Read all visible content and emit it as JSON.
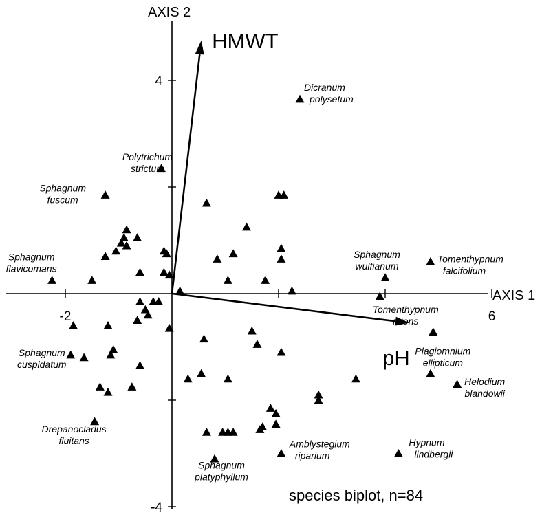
{
  "chart_data": {
    "type": "scatter",
    "title": "",
    "caption": "species biplot, n=84",
    "xlabel": "AXIS 1",
    "ylabel": "AXIS 2",
    "xlim": [
      -3.2,
      7.0
    ],
    "ylim": [
      -4.1,
      5.1
    ],
    "x_ticks": [
      -2,
      0,
      2,
      4,
      6
    ],
    "y_ticks": [
      -4,
      -2,
      0,
      2,
      4
    ],
    "x_tick_labels": [
      {
        "value": -2,
        "label": "-2"
      },
      {
        "value": 6,
        "label": "6"
      }
    ],
    "y_tick_labels": [
      {
        "value": 4,
        "label": "4"
      },
      {
        "value": -4,
        "label": "-4"
      }
    ],
    "vectors": [
      {
        "label": "HMWT",
        "x": 0.55,
        "y": 4.75,
        "label_at": [
          0.75,
          4.75
        ]
      },
      {
        "label": "pH",
        "x": 4.45,
        "y": -0.55,
        "label_at": [
          3.95,
          -1.2
        ]
      }
    ],
    "labeled_species": [
      {
        "name": [
          "Dicranum",
          "polysetum"
        ],
        "x": 2.4,
        "y": 3.65
      },
      {
        "name": [
          "Polytrichum",
          "strictum"
        ],
        "x": -0.2,
        "y": 2.35
      },
      {
        "name": [
          "Sphagnum",
          "fuscum"
        ],
        "x": -1.25,
        "y": 1.85
      },
      {
        "name": [
          "Sphagnum",
          "flavicomans"
        ],
        "x": -2.25,
        "y": 0.25
      },
      {
        "name": [
          "Sphagnum",
          "wulfianum"
        ],
        "x": 4.0,
        "y": 0.3
      },
      {
        "name": [
          "Tomenthypnum",
          "falcifolium"
        ],
        "x": 4.85,
        "y": 0.6
      },
      {
        "name": [
          "Tomenthypnum",
          "nitens"
        ],
        "x": 4.9,
        "y": -0.72
      },
      {
        "name": [
          "Sphagnum",
          "cuspidatum"
        ],
        "x": -1.9,
        "y": -1.15
      },
      {
        "name": [
          "Plagiomnium",
          "ellipticum"
        ],
        "x": 4.85,
        "y": -1.5
      },
      {
        "name": [
          "Helodium",
          "blandowii"
        ],
        "x": 5.35,
        "y": -1.7
      },
      {
        "name": [
          "Drepanocladus",
          "fluitans"
        ],
        "x": -1.45,
        "y": -2.4
      },
      {
        "name": [
          "Amblystegium",
          "riparium"
        ],
        "x": 2.05,
        "y": -3.0
      },
      {
        "name": [
          "Hypnum",
          "lindbergii"
        ],
        "x": 4.25,
        "y": -3.0
      },
      {
        "name": [
          "Sphagnum",
          "platyphyllum"
        ],
        "x": 0.8,
        "y": -3.1
      }
    ],
    "other_species": {
      "x": [
        -0.65,
        -0.85,
        -0.9,
        -0.95,
        -1.05,
        -1.25,
        -0.85,
        -0.15,
        -0.1,
        -0.05,
        -0.15,
        -0.6,
        -1.5,
        0.65,
        2.0,
        2.1,
        1.4,
        0.85,
        1.15,
        2.05,
        2.05,
        1.75,
        1.05,
        2.25,
        0.15,
        -0.25,
        -0.35,
        -0.6,
        -0.5,
        -0.45,
        -0.65,
        -1.85,
        -1.2,
        -0.05,
        0.6,
        1.5,
        1.6,
        2.05,
        -1.65,
        -1.15,
        -1.1,
        -0.6,
        -1.35,
        -1.2,
        -0.75,
        0.3,
        0.55,
        1.05,
        2.75,
        3.45,
        2.75,
        1.85,
        1.95,
        1.95,
        1.7,
        1.65,
        1.15,
        1.05,
        0.95,
        0.65,
        3.9
      ],
      "y": [
        1.05,
        1.2,
        1.05,
        0.95,
        0.8,
        0.7,
        0.9,
        0.8,
        0.75,
        0.35,
        0.4,
        0.4,
        0.25,
        1.7,
        1.85,
        1.85,
        1.25,
        0.65,
        0.75,
        0.85,
        0.65,
        0.25,
        0.25,
        0.05,
        0.05,
        -0.15,
        -0.15,
        -0.15,
        -0.3,
        -0.4,
        -0.5,
        -0.6,
        -0.6,
        -0.65,
        -0.85,
        -0.7,
        -0.95,
        -1.1,
        -1.2,
        -1.15,
        -1.05,
        -1.35,
        -1.75,
        -1.85,
        -1.75,
        -1.6,
        -1.5,
        -1.6,
        -1.9,
        -1.6,
        -2.0,
        -2.15,
        -2.25,
        -2.45,
        -2.5,
        -2.55,
        -2.6,
        -2.6,
        -2.6,
        -2.6,
        -0.05
      ]
    }
  }
}
